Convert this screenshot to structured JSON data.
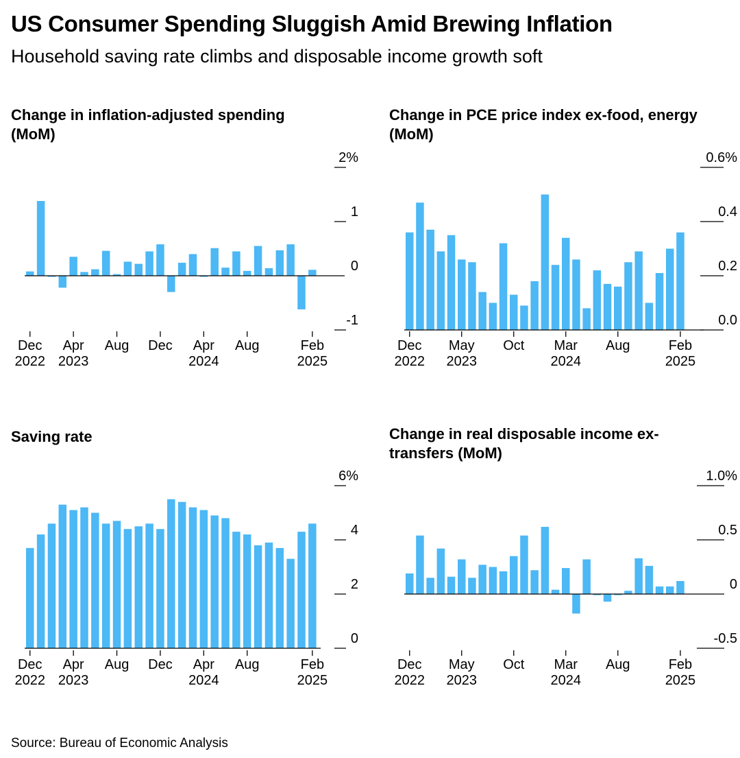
{
  "title": "US Consumer Spending Sluggish Amid Brewing Inflation",
  "subtitle": "Household saving rate climbs and disposable income growth soft",
  "source": "Source: Bureau of Economic Analysis",
  "colors": {
    "bar": "#4cb8f5",
    "axis": "#000000"
  },
  "chart_data": [
    {
      "type": "bar",
      "title": "Change in inflation-adjusted spending (MoM)",
      "title_lines": [
        "Change in inflation-adjusted spending",
        "(MoM)"
      ],
      "x": [
        "2022-12",
        "2023-01",
        "2023-02",
        "2023-03",
        "2023-04",
        "2023-05",
        "2023-06",
        "2023-07",
        "2023-08",
        "2023-09",
        "2023-10",
        "2023-11",
        "2023-12",
        "2024-01",
        "2024-02",
        "2024-03",
        "2024-04",
        "2024-05",
        "2024-06",
        "2024-07",
        "2024-08",
        "2024-09",
        "2024-10",
        "2024-11",
        "2024-12",
        "2025-01",
        "2025-02"
      ],
      "values": [
        0.08,
        1.38,
        -0.02,
        -0.22,
        0.35,
        0.07,
        0.12,
        0.46,
        0.03,
        0.26,
        0.22,
        0.45,
        0.58,
        -0.3,
        0.24,
        0.4,
        -0.02,
        0.51,
        0.15,
        0.45,
        0.09,
        0.55,
        0.14,
        0.47,
        0.58,
        -0.62,
        0.11
      ],
      "ylim": [
        -1,
        2
      ],
      "yticks": [
        2,
        1,
        0,
        -1
      ],
      "ytick_labels": [
        "2%",
        "1",
        "0",
        "-1"
      ],
      "xtick_labels": [
        {
          "x": "2022-12",
          "lines": [
            "Dec",
            "2022"
          ]
        },
        {
          "x": "2023-04",
          "lines": [
            "Apr",
            "2023"
          ]
        },
        {
          "x": "2023-08",
          "lines": [
            "Aug"
          ]
        },
        {
          "x": "2023-12",
          "lines": [
            "Dec"
          ]
        },
        {
          "x": "2024-04",
          "lines": [
            "Apr",
            "2024"
          ]
        },
        {
          "x": "2024-08",
          "lines": [
            "Aug"
          ]
        },
        {
          "x": "2025-02",
          "lines": [
            "Feb",
            "2025"
          ]
        }
      ]
    },
    {
      "type": "bar",
      "title": "Change in PCE price index ex-food, energy (MoM)",
      "title_lines": [
        "Change in PCE price index ex-food, energy",
        "(MoM)"
      ],
      "x": [
        "2022-12",
        "2023-01",
        "2023-02",
        "2023-03",
        "2023-04",
        "2023-05",
        "2023-06",
        "2023-07",
        "2023-08",
        "2023-09",
        "2023-10",
        "2023-11",
        "2023-12",
        "2024-01",
        "2024-02",
        "2024-03",
        "2024-04",
        "2024-05",
        "2024-06",
        "2024-07",
        "2024-08",
        "2024-09",
        "2024-10",
        "2024-11",
        "2024-12",
        "2025-01",
        "2025-02"
      ],
      "values": [
        0.36,
        0.47,
        0.37,
        0.29,
        0.35,
        0.26,
        0.25,
        0.14,
        0.1,
        0.32,
        0.13,
        0.09,
        0.18,
        0.5,
        0.24,
        0.34,
        0.26,
        0.08,
        0.22,
        0.17,
        0.16,
        0.25,
        0.29,
        0.1,
        0.21,
        0.3,
        0.36
      ],
      "ylim": [
        0,
        0.6
      ],
      "yticks": [
        0.6,
        0.4,
        0.2,
        0
      ],
      "ytick_labels": [
        "0.6%",
        "0.4",
        "0.2",
        "0.0"
      ],
      "xtick_labels": [
        {
          "x": "2022-12",
          "lines": [
            "Dec",
            "2022"
          ]
        },
        {
          "x": "2023-05",
          "lines": [
            "May",
            "2023"
          ]
        },
        {
          "x": "2023-10",
          "lines": [
            "Oct"
          ]
        },
        {
          "x": "2024-03",
          "lines": [
            "Mar",
            "2024"
          ]
        },
        {
          "x": "2024-08",
          "lines": [
            "Aug"
          ]
        },
        {
          "x": "2025-02",
          "lines": [
            "Feb",
            "2025"
          ]
        }
      ]
    },
    {
      "type": "bar",
      "title": "Saving rate",
      "title_lines": [
        "Saving rate"
      ],
      "x": [
        "2022-12",
        "2023-01",
        "2023-02",
        "2023-03",
        "2023-04",
        "2023-05",
        "2023-06",
        "2023-07",
        "2023-08",
        "2023-09",
        "2023-10",
        "2023-11",
        "2023-12",
        "2024-01",
        "2024-02",
        "2024-03",
        "2024-04",
        "2024-05",
        "2024-06",
        "2024-07",
        "2024-08",
        "2024-09",
        "2024-10",
        "2024-11",
        "2024-12",
        "2025-01",
        "2025-02"
      ],
      "values": [
        3.7,
        4.2,
        4.6,
        5.3,
        5.1,
        5.2,
        5.0,
        4.6,
        4.7,
        4.4,
        4.5,
        4.6,
        4.4,
        5.5,
        5.4,
        5.2,
        5.1,
        4.9,
        4.8,
        4.3,
        4.2,
        3.8,
        3.9,
        3.7,
        3.3,
        4.3,
        4.6
      ],
      "ylim": [
        0,
        6
      ],
      "yticks": [
        6,
        4,
        2,
        0
      ],
      "ytick_labels": [
        "6%",
        "4",
        "2",
        "0"
      ],
      "xtick_labels": [
        {
          "x": "2022-12",
          "lines": [
            "Dec",
            "2022"
          ]
        },
        {
          "x": "2023-04",
          "lines": [
            "Apr",
            "2023"
          ]
        },
        {
          "x": "2023-08",
          "lines": [
            "Aug"
          ]
        },
        {
          "x": "2023-12",
          "lines": [
            "Dec"
          ]
        },
        {
          "x": "2024-04",
          "lines": [
            "Apr",
            "2024"
          ]
        },
        {
          "x": "2024-08",
          "lines": [
            "Aug"
          ]
        },
        {
          "x": "2025-02",
          "lines": [
            "Feb",
            "2025"
          ]
        }
      ]
    },
    {
      "type": "bar",
      "title": "Change in real disposable income ex-transfers (MoM)",
      "title_lines": [
        "Change in real disposable income ex-",
        "transfers (MoM)"
      ],
      "x": [
        "2022-12",
        "2023-01",
        "2023-02",
        "2023-03",
        "2023-04",
        "2023-05",
        "2023-06",
        "2023-07",
        "2023-08",
        "2023-09",
        "2023-10",
        "2023-11",
        "2023-12",
        "2024-01",
        "2024-02",
        "2024-03",
        "2024-04",
        "2024-05",
        "2024-06",
        "2024-07",
        "2024-08",
        "2024-09",
        "2024-10",
        "2024-11",
        "2024-12",
        "2025-01",
        "2025-02"
      ],
      "values": [
        0.19,
        0.54,
        0.15,
        0.42,
        0.16,
        0.32,
        0.15,
        0.27,
        0.25,
        0.21,
        0.35,
        0.54,
        0.22,
        0.62,
        0.04,
        0.24,
        -0.18,
        0.32,
        -0.01,
        -0.07,
        -0.01,
        0.03,
        0.33,
        0.26,
        0.07,
        0.07,
        0.12
      ],
      "ylim": [
        -0.5,
        1.0
      ],
      "yticks": [
        1.0,
        0.5,
        0,
        -0.5
      ],
      "ytick_labels": [
        "1.0%",
        "0.5",
        "0",
        "-0.5"
      ],
      "xtick_labels": [
        {
          "x": "2022-12",
          "lines": [
            "Dec",
            "2022"
          ]
        },
        {
          "x": "2023-05",
          "lines": [
            "May",
            "2023"
          ]
        },
        {
          "x": "2023-10",
          "lines": [
            "Oct"
          ]
        },
        {
          "x": "2024-03",
          "lines": [
            "Mar",
            "2024"
          ]
        },
        {
          "x": "2024-08",
          "lines": [
            "Aug"
          ]
        },
        {
          "x": "2025-02",
          "lines": [
            "Feb",
            "2025"
          ]
        }
      ]
    }
  ]
}
